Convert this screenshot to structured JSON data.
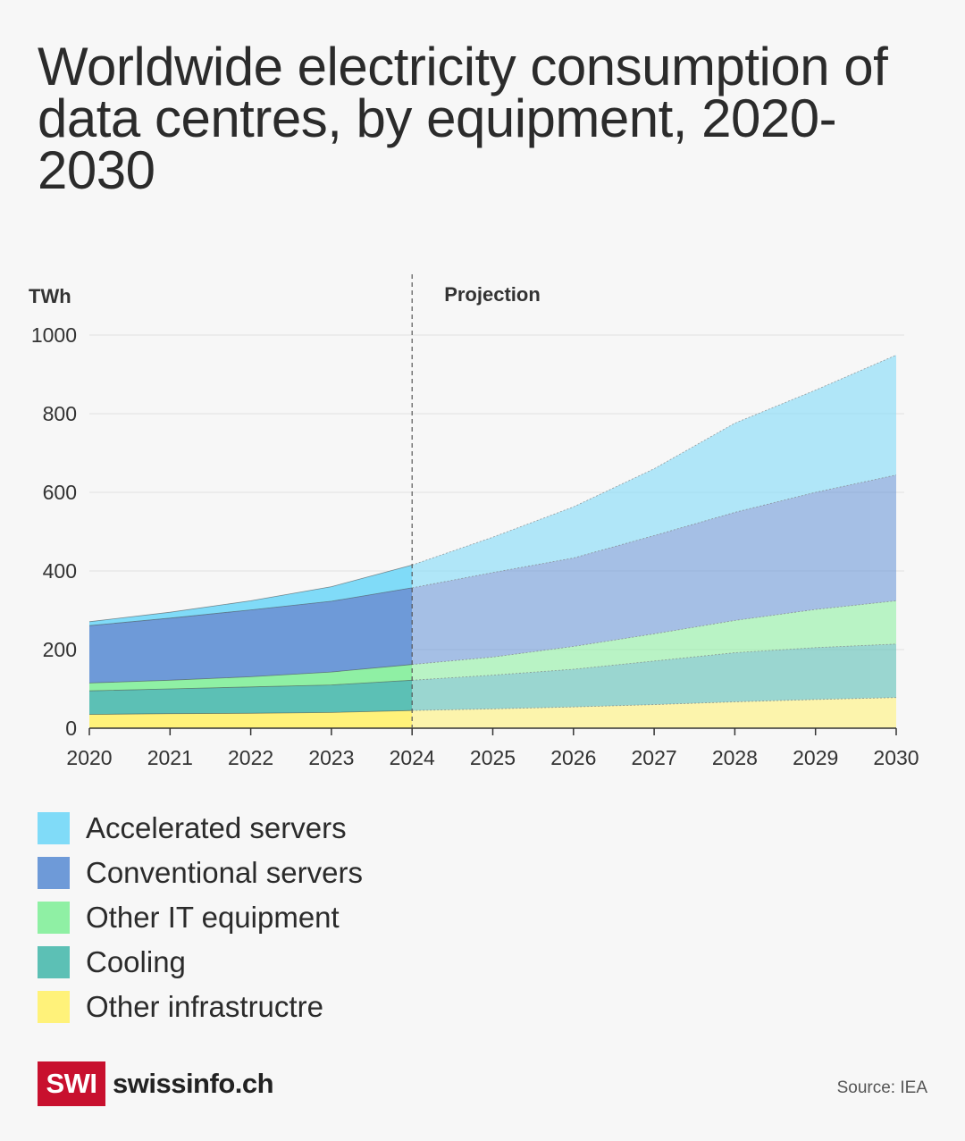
{
  "title": "Worldwide electricity consumption of data centres, by equipment, 2020-2030",
  "source": "Source: IEA",
  "logo": {
    "box": "SWI",
    "text": "swissinfo.ch"
  },
  "chart_data": {
    "type": "area",
    "stacked": true,
    "ylabel": "TWh",
    "ylim": [
      0,
      1000
    ],
    "yticks": [
      0,
      200,
      400,
      600,
      800,
      1000
    ],
    "x": [
      2020,
      2021,
      2022,
      2023,
      2024,
      2025,
      2026,
      2027,
      2028,
      2029,
      2030
    ],
    "grid": true,
    "projection_start": 2024,
    "annotation": "Projection",
    "series": [
      {
        "name": "Other infrastructre",
        "color": "#fff27a",
        "values": [
          35,
          37,
          38,
          40,
          45,
          49,
          54,
          60,
          67,
          73,
          78
        ]
      },
      {
        "name": "Cooling",
        "color": "#5cc0b5",
        "values": [
          60,
          63,
          67,
          70,
          77,
          86,
          96,
          111,
          125,
          132,
          136
        ]
      },
      {
        "name": "Other IT equipment",
        "color": "#8ff0a4",
        "values": [
          20,
          22,
          26,
          33,
          40,
          46,
          58,
          69,
          82,
          97,
          110
        ]
      },
      {
        "name": "Conventional servers",
        "color": "#6e9ad8",
        "values": [
          146,
          158,
          170,
          180,
          195,
          215,
          225,
          250,
          275,
          298,
          320
        ]
      },
      {
        "name": "Accelerated servers",
        "color": "#80dbf8",
        "values": [
          10,
          15,
          23,
          37,
          58,
          90,
          130,
          170,
          227,
          260,
          305
        ]
      }
    ]
  }
}
